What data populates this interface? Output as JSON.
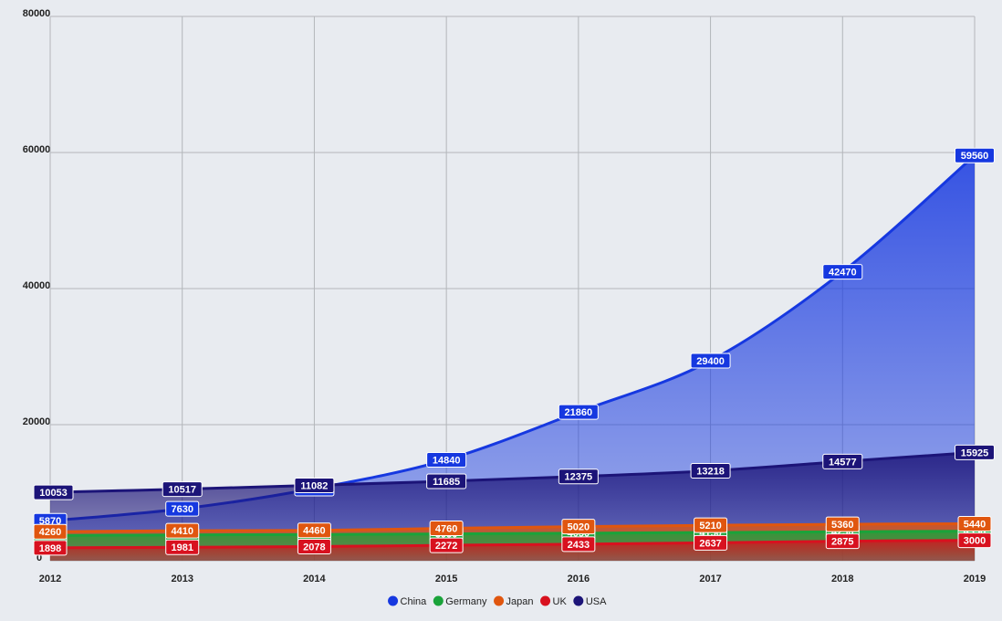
{
  "chart_data": {
    "type": "area",
    "categories": [
      "2012",
      "2013",
      "2014",
      "2015",
      "2016",
      "2017",
      "2018",
      "2019"
    ],
    "ylim": [
      0,
      80000
    ],
    "yticks": [
      0,
      20000,
      40000,
      60000,
      80000
    ],
    "grid": true,
    "series": [
      {
        "name": "China",
        "color": "#1638e0",
        "values": [
          5870,
          7630,
          10600,
          14840,
          21860,
          29400,
          42470,
          59560
        ]
      },
      {
        "name": "Germany",
        "color": "#1aa33a",
        "values": [
          3700,
          3800,
          3850,
          3950,
          4050,
          4150,
          4250,
          4350
        ]
      },
      {
        "name": "Japan",
        "color": "#e0560f",
        "values": [
          4260,
          4410,
          4460,
          4760,
          5020,
          5210,
          5360,
          5440
        ]
      },
      {
        "name": "UK",
        "color": "#d8111f",
        "values": [
          1898,
          1981,
          2078,
          2272,
          2433,
          2637,
          2875,
          3000
        ]
      },
      {
        "name": "USA",
        "color": "#1c1478",
        "values": [
          10053,
          10517,
          11082,
          11685,
          12375,
          13218,
          14577,
          15925
        ]
      }
    ]
  }
}
